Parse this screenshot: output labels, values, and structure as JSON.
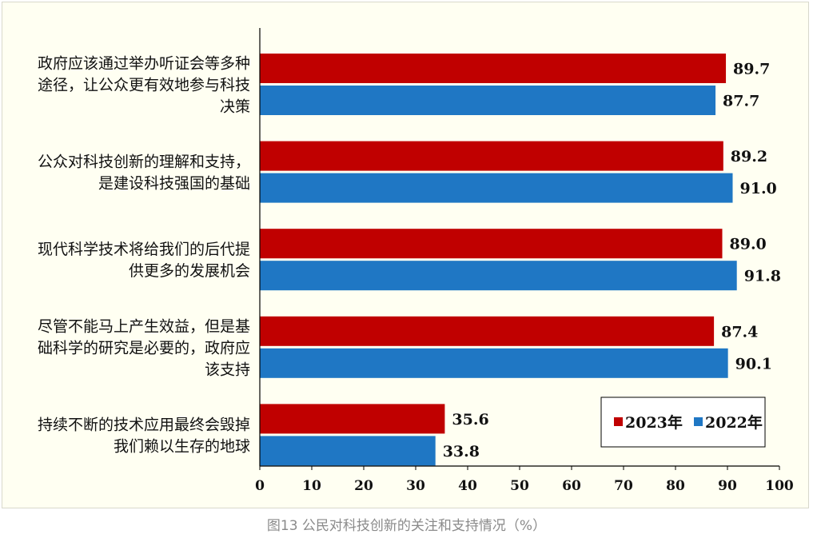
{
  "caption": "图13 公民对科技创新的关注和支持情况（%）",
  "colors": {
    "series_2023": "#c00000",
    "series_2022": "#1f77c4",
    "panel_background": "#fffff2"
  },
  "chart_data": {
    "type": "bar",
    "orientation": "horizontal",
    "categories": [
      "政府应该通过举办听证会等多种途径，让公众更有效地参与科技决策",
      "公众对科技创新的理解和支持，是建设科技强国的基础",
      "现代科学技术将给我们的后代提供更多的发展机会",
      "尽管不能马上产生效益，但是基础科学的研究是必要的，政府应该支持",
      "持续不断的技术应用最终会毁掉我们赖以生存的地球"
    ],
    "category_lines": [
      [
        "政府应该通过举办听证会等多种",
        "途径，让公众更有效地参与科技",
        "决策"
      ],
      [
        "公众对科技创新的理解和支持，",
        "是建设科技强国的基础"
      ],
      [
        "现代科学技术将给我们的后代提",
        "供更多的发展机会"
      ],
      [
        "尽管不能马上产生效益，但是基",
        "础科学的研究是必要的，政府应",
        "该支持"
      ],
      [
        "持续不断的技术应用最终会毁掉",
        "我们赖以生存的地球"
      ]
    ],
    "series": [
      {
        "name": "2023年",
        "values": [
          89.7,
          89.2,
          89.0,
          87.4,
          35.6
        ],
        "labels": [
          "89.7",
          "89.2",
          "89.0",
          "87.4",
          "35.6"
        ]
      },
      {
        "name": "2022年",
        "values": [
          87.7,
          91.0,
          91.8,
          90.1,
          33.8
        ],
        "labels": [
          "87.7",
          "91.0",
          "91.8",
          "90.1",
          "33.8"
        ]
      }
    ],
    "xlim": [
      0,
      100
    ],
    "xticks": [
      0,
      10,
      20,
      30,
      40,
      50,
      60,
      70,
      80,
      90,
      100
    ],
    "legend_position": "bottom-right",
    "grid": false
  }
}
